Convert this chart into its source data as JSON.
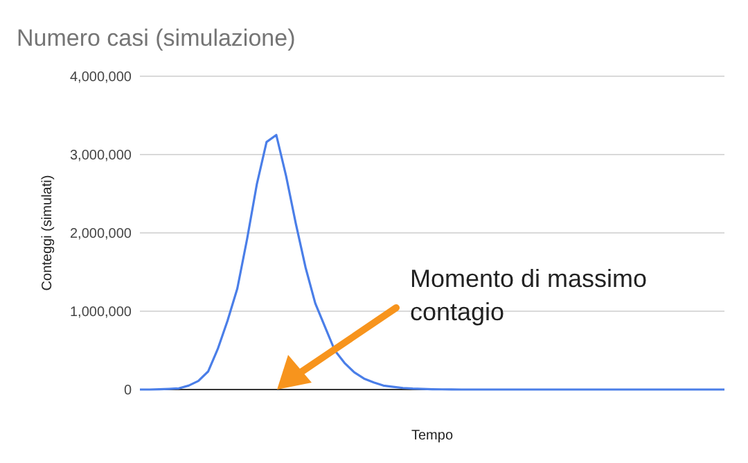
{
  "chart_data": {
    "type": "line",
    "title": "Numero casi (simulazione)",
    "xlabel": "Tempo",
    "ylabel": "Conteggi (simulati)",
    "categories": [
      null,
      null,
      null,
      null,
      null,
      null,
      null,
      null,
      null,
      null,
      null,
      null,
      null,
      null,
      null,
      null,
      null,
      null,
      null,
      null,
      null,
      null,
      null,
      null,
      null,
      null,
      null,
      null,
      null,
      null,
      null,
      null,
      null,
      null,
      null,
      null,
      null,
      null,
      null,
      null,
      null,
      null,
      null,
      null,
      null,
      null,
      null,
      null,
      null,
      null,
      null,
      null,
      null,
      null,
      null,
      null,
      null,
      null,
      null,
      null,
      null
    ],
    "series": [
      {
        "color": "#4a7ee8",
        "values": [
          0,
          0,
          3000,
          8000,
          15000,
          50000,
          110000,
          230000,
          520000,
          880000,
          1290000,
          1920000,
          2620000,
          3160000,
          3250000,
          2730000,
          2120000,
          1560000,
          1100000,
          800000,
          500000,
          340000,
          220000,
          140000,
          90000,
          50000,
          35000,
          20000,
          12000,
          7000,
          4000,
          2000,
          1000,
          0,
          0,
          0,
          0,
          0,
          0,
          0,
          0,
          0,
          0,
          0,
          0,
          0,
          0,
          0,
          0,
          0,
          0,
          0,
          0,
          0,
          0,
          0,
          0,
          0,
          0,
          0,
          0
        ]
      }
    ],
    "ylim": [
      0,
      4000000
    ],
    "yticks": [
      {
        "value": 0,
        "label": "0"
      },
      {
        "value": 1000000,
        "label": "1,000,000"
      },
      {
        "value": 2000000,
        "label": "2,000,000"
      },
      {
        "value": 3000000,
        "label": "3,000,000"
      },
      {
        "value": 4000000,
        "label": "4,000,000"
      }
    ],
    "grid": "y",
    "marker": "none",
    "line_style": "solid",
    "annotations": [
      "Momento di massimo contagio"
    ]
  }
}
